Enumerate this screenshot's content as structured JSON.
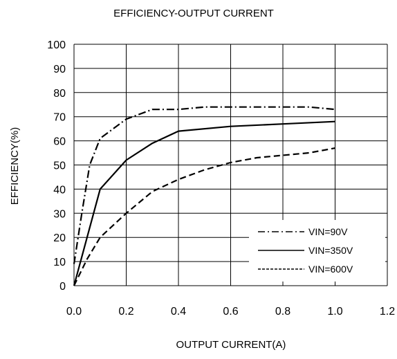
{
  "chart_data": {
    "type": "line",
    "title": "EFFICIENCY-OUTPUT CURRENT",
    "xlabel": "OUTPUT CURRENT(A)",
    "ylabel": "EFFICIENCY(%)",
    "xlim": [
      0.0,
      1.2
    ],
    "ylim": [
      0,
      100
    ],
    "x_ticks": [
      "0.0",
      "0.2",
      "0.4",
      "0.6",
      "0.8",
      "1.0",
      "1.2"
    ],
    "y_ticks": [
      "0",
      "10",
      "20",
      "30",
      "40",
      "50",
      "60",
      "70",
      "80",
      "90",
      "100"
    ],
    "grid": true,
    "legend_position": "bottom-right",
    "series": [
      {
        "name": "VIN=90V",
        "dash": "dash-dot",
        "x": [
          0.0,
          0.03,
          0.06,
          0.1,
          0.15,
          0.2,
          0.3,
          0.4,
          0.5,
          0.6,
          0.7,
          0.8,
          0.9,
          1.0
        ],
        "y": [
          9,
          30,
          50,
          61,
          65,
          69,
          73,
          73,
          74,
          74,
          74,
          74,
          74,
          73
        ]
      },
      {
        "name": "VIN=350V",
        "dash": "solid",
        "x": [
          0.0,
          0.05,
          0.1,
          0.15,
          0.2,
          0.3,
          0.4,
          0.6,
          0.8,
          1.0
        ],
        "y": [
          0,
          20,
          40,
          46,
          52,
          59,
          64,
          66,
          67,
          68
        ]
      },
      {
        "name": "VIN=600V",
        "dash": "dashed",
        "x": [
          0.0,
          0.05,
          0.1,
          0.2,
          0.3,
          0.4,
          0.5,
          0.6,
          0.7,
          0.8,
          0.9,
          1.0
        ],
        "y": [
          0,
          11,
          20,
          30,
          39,
          44,
          48,
          51,
          53,
          54,
          55,
          57
        ]
      }
    ]
  }
}
